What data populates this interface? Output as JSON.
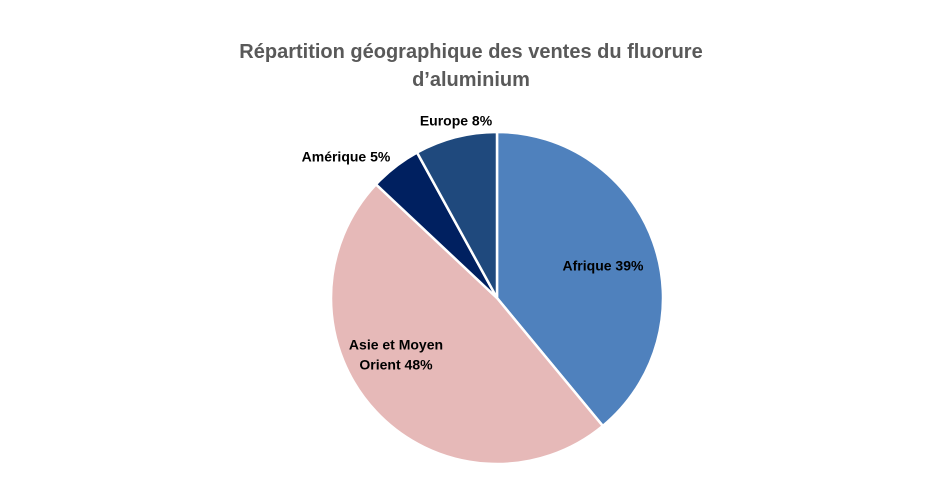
{
  "chart_data": {
    "type": "pie",
    "title_lines": [
      "Répartition géographique des ventes du fluorure",
      "d’aluminium"
    ],
    "slices": [
      {
        "label_lines": [
          "Afrique 39%"
        ],
        "value": 39,
        "color": "#4f81bd"
      },
      {
        "label_lines": [
          "Asie et Moyen",
          "Orient 48%"
        ],
        "value": 48,
        "color": "#e6b9b8"
      },
      {
        "label_lines": [
          "Amérique 5%"
        ],
        "value": 5,
        "color": "#002060"
      },
      {
        "label_lines": [
          "Europe 8%"
        ],
        "value": 8,
        "color": "#1f497d"
      }
    ],
    "start": "12 o'clock",
    "direction": "clockwise",
    "legend": "none"
  }
}
